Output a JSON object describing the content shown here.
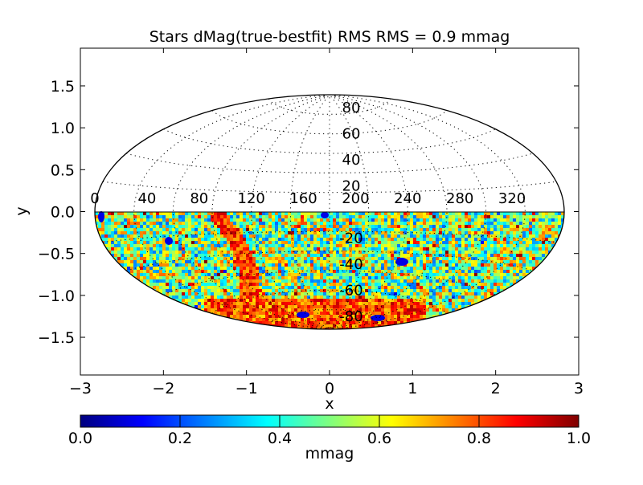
{
  "chart_data": {
    "type": "heatmap",
    "projection": "aitoff",
    "title": "Stars dMag(true-bestfit)  RMS  RMS =  0.9 mmag",
    "xlabel": "x",
    "ylabel": "y",
    "xlim": [
      -3,
      3
    ],
    "ylim": [
      -1.95,
      1.95
    ],
    "xticks": [
      "−3",
      "−2",
      "−1",
      "0",
      "1",
      "2",
      "3"
    ],
    "xtick_values": [
      -3,
      -2,
      -1,
      0,
      1,
      2,
      3
    ],
    "yticks": [
      "1.5",
      "1.0",
      "0.5",
      "0.0",
      "−0.5",
      "−1.0",
      "−1.5"
    ],
    "ytick_values": [
      1.5,
      1.0,
      0.5,
      0.0,
      -0.5,
      -1.0,
      -1.5
    ],
    "grid": true,
    "longitude_labels": [
      "200",
      "240",
      "280",
      "320",
      "0",
      "40",
      "80",
      "120",
      "160"
    ],
    "longitude_values": [
      200,
      240,
      280,
      320,
      0,
      40,
      80,
      120,
      160
    ],
    "latitude_labels": [
      "80",
      "60",
      "40",
      "20",
      "-20",
      "-40",
      "-60",
      "-80"
    ],
    "latitude_values": [
      80,
      60,
      40,
      20,
      -20,
      -40,
      -60,
      -80
    ],
    "data_coverage": "southern hemisphere only (dec < 0)",
    "colormap": "jet",
    "colorbar": {
      "label": "mmag",
      "range": [
        0.0,
        1.0
      ],
      "ticks": [
        "0.0",
        "0.2",
        "0.4",
        "0.6",
        "0.8",
        "1.0"
      ],
      "tick_values": [
        0.0,
        0.2,
        0.4,
        0.6,
        0.8,
        1.0
      ],
      "orientation": "horizontal",
      "colors": [
        "#00007f",
        "#0000ff",
        "#007fff",
        "#00ffff",
        "#7fff7f",
        "#ffff00",
        "#ff7f00",
        "#ff0000",
        "#7f0000"
      ]
    },
    "typical_value": 0.5,
    "features": [
      {
        "description": "high-value band",
        "value": 0.95
      },
      {
        "description": "low-value spots",
        "value": 0.1
      }
    ]
  }
}
